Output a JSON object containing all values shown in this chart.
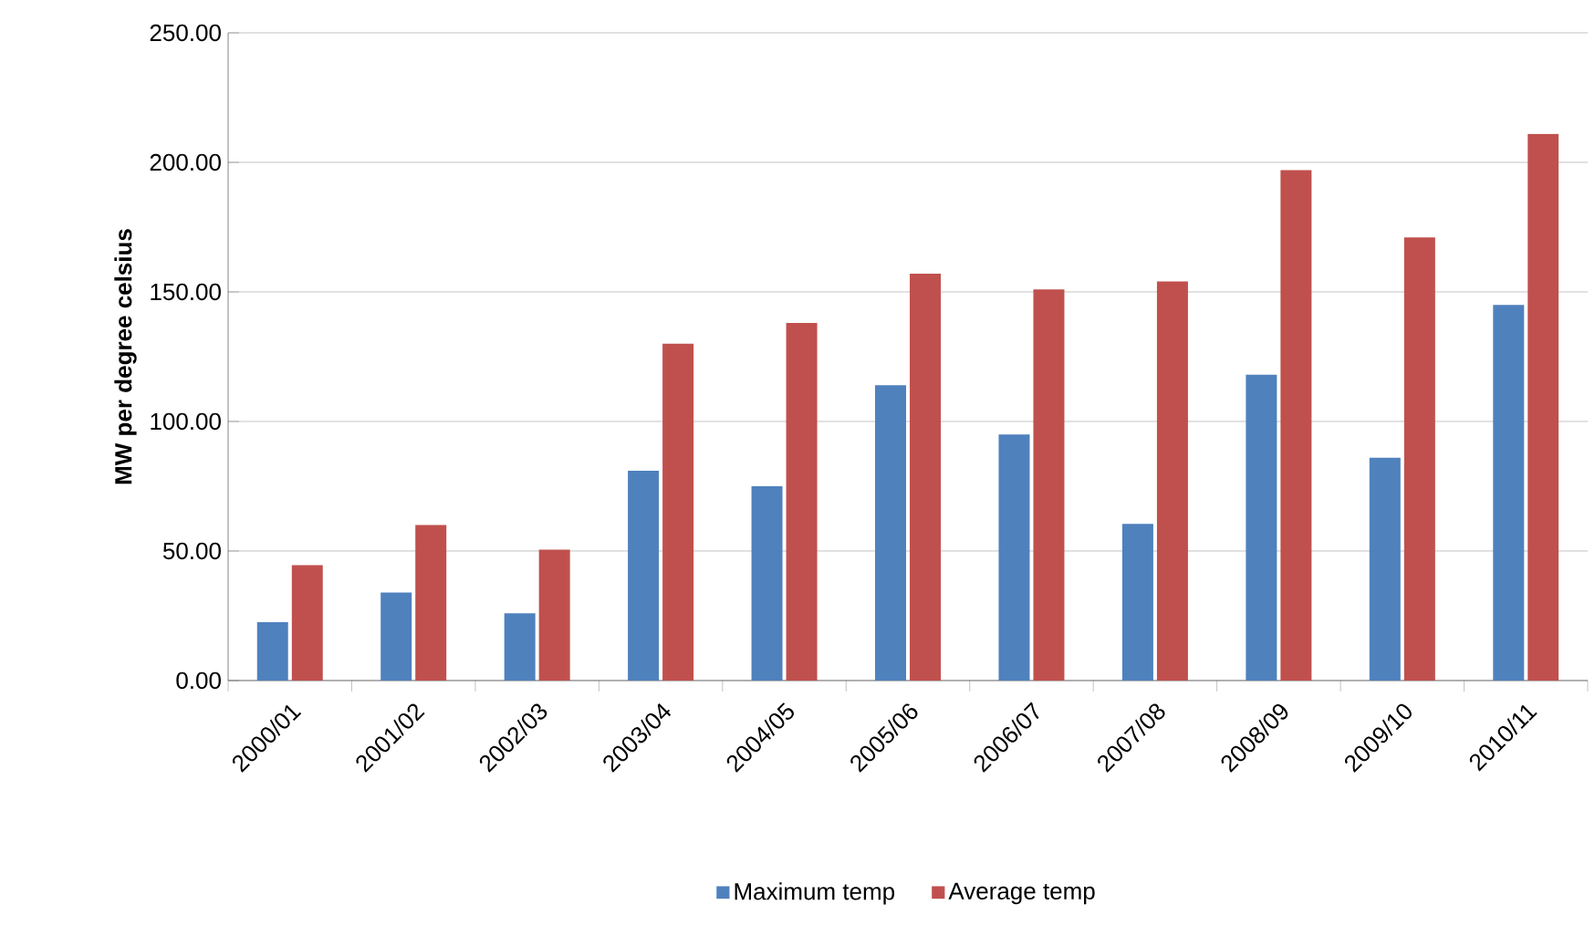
{
  "chart_data": {
    "type": "bar",
    "ylabel": "MW per degree celsius",
    "categories": [
      "2000/01",
      "2001/02",
      "2002/03",
      "2003/04",
      "2004/05",
      "2005/06",
      "2006/07",
      "2007/08",
      "2008/09",
      "2009/10",
      "2010/11"
    ],
    "series": [
      {
        "name": "Maximum temp",
        "color": "#4f81bd",
        "values": [
          22.5,
          34,
          26,
          81,
          75,
          114,
          95,
          60.5,
          118,
          86,
          145
        ]
      },
      {
        "name": "Average temp",
        "color": "#c0504d",
        "values": [
          44.5,
          60,
          50.5,
          130,
          138,
          157,
          151,
          154,
          197,
          171,
          211
        ]
      }
    ],
    "ylim": [
      0,
      250
    ],
    "yticks": [
      {
        "value": 0,
        "label": "0.00"
      },
      {
        "value": 50,
        "label": "50.00"
      },
      {
        "value": 100,
        "label": "100.00"
      },
      {
        "value": 150,
        "label": "150.00"
      },
      {
        "value": 200,
        "label": "200.00"
      },
      {
        "value": 250,
        "label": "250.00"
      }
    ],
    "grid": "y",
    "legend": "bottom"
  }
}
